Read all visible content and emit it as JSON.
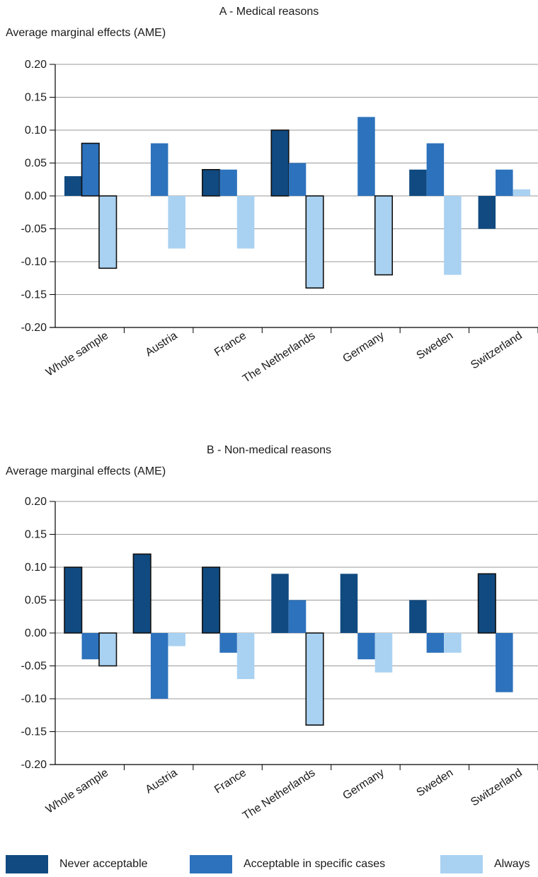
{
  "colors": {
    "never": "#104a80",
    "specific": "#2d72bc",
    "always": "#a9d1f1",
    "axis": "#000000",
    "grid": "#9a9a9a"
  },
  "legend": [
    {
      "name": "Never acceptable",
      "color": "#104a80"
    },
    {
      "name": "Acceptable in specific cases",
      "color": "#2d72bc"
    },
    {
      "name": "Always",
      "color": "#a9d1f1"
    }
  ],
  "chart_data": [
    {
      "type": "bar",
      "title": "A - Medical reasons",
      "ylabel": "Average marginal effects (AME)",
      "xlabel": "",
      "ylim": [
        -0.2,
        0.2
      ],
      "yticks": [
        "0.20",
        "0.15",
        "0.10",
        "0.05",
        "0.00",
        "-0.05",
        "-0.10",
        "-0.15",
        "-0.20"
      ],
      "grid": true,
      "categories": [
        "Whole sample",
        "Austria",
        "France",
        "The Netherlands",
        "Germany",
        "Sweden",
        "Switzerland"
      ],
      "series": [
        {
          "name": "Never acceptable",
          "values": [
            0.03,
            0.0,
            0.04,
            0.1,
            0.0,
            0.04,
            -0.05
          ],
          "outlined": [
            false,
            false,
            true,
            true,
            false,
            false,
            false
          ]
        },
        {
          "name": "Acceptable in specific cases",
          "values": [
            0.08,
            0.08,
            0.04,
            0.05,
            0.12,
            0.08,
            0.04
          ],
          "outlined": [
            true,
            false,
            false,
            false,
            false,
            false,
            false
          ]
        },
        {
          "name": "Always",
          "values": [
            -0.11,
            -0.08,
            -0.08,
            -0.14,
            -0.12,
            -0.12,
            0.01
          ],
          "outlined": [
            true,
            false,
            false,
            true,
            true,
            false,
            false
          ]
        }
      ]
    },
    {
      "type": "bar",
      "title": "B - Non-medical reasons",
      "ylabel": "Average marginal effects (AME)",
      "xlabel": "",
      "ylim": [
        -0.2,
        0.2
      ],
      "yticks": [
        "0.20",
        "0.15",
        "0.10",
        "0.05",
        "0.00",
        "-0.05",
        "-0.10",
        "-0.15",
        "-0.20"
      ],
      "grid": true,
      "categories": [
        "Whole sample",
        "Austria",
        "France",
        "The Netherlands",
        "Germany",
        "Sweden",
        "Switzerland"
      ],
      "series": [
        {
          "name": "Never acceptable",
          "values": [
            0.1,
            0.12,
            0.1,
            0.09,
            0.09,
            0.05,
            0.09
          ],
          "outlined": [
            true,
            true,
            true,
            false,
            false,
            false,
            true
          ]
        },
        {
          "name": "Acceptable in specific cases",
          "values": [
            -0.04,
            -0.1,
            -0.03,
            0.05,
            -0.04,
            -0.03,
            -0.09
          ],
          "outlined": [
            false,
            false,
            false,
            false,
            false,
            false,
            false
          ]
        },
        {
          "name": "Always",
          "values": [
            -0.05,
            -0.02,
            -0.07,
            -0.14,
            -0.06,
            -0.03,
            0.0
          ],
          "outlined": [
            true,
            false,
            false,
            true,
            false,
            false,
            false
          ]
        }
      ]
    }
  ]
}
